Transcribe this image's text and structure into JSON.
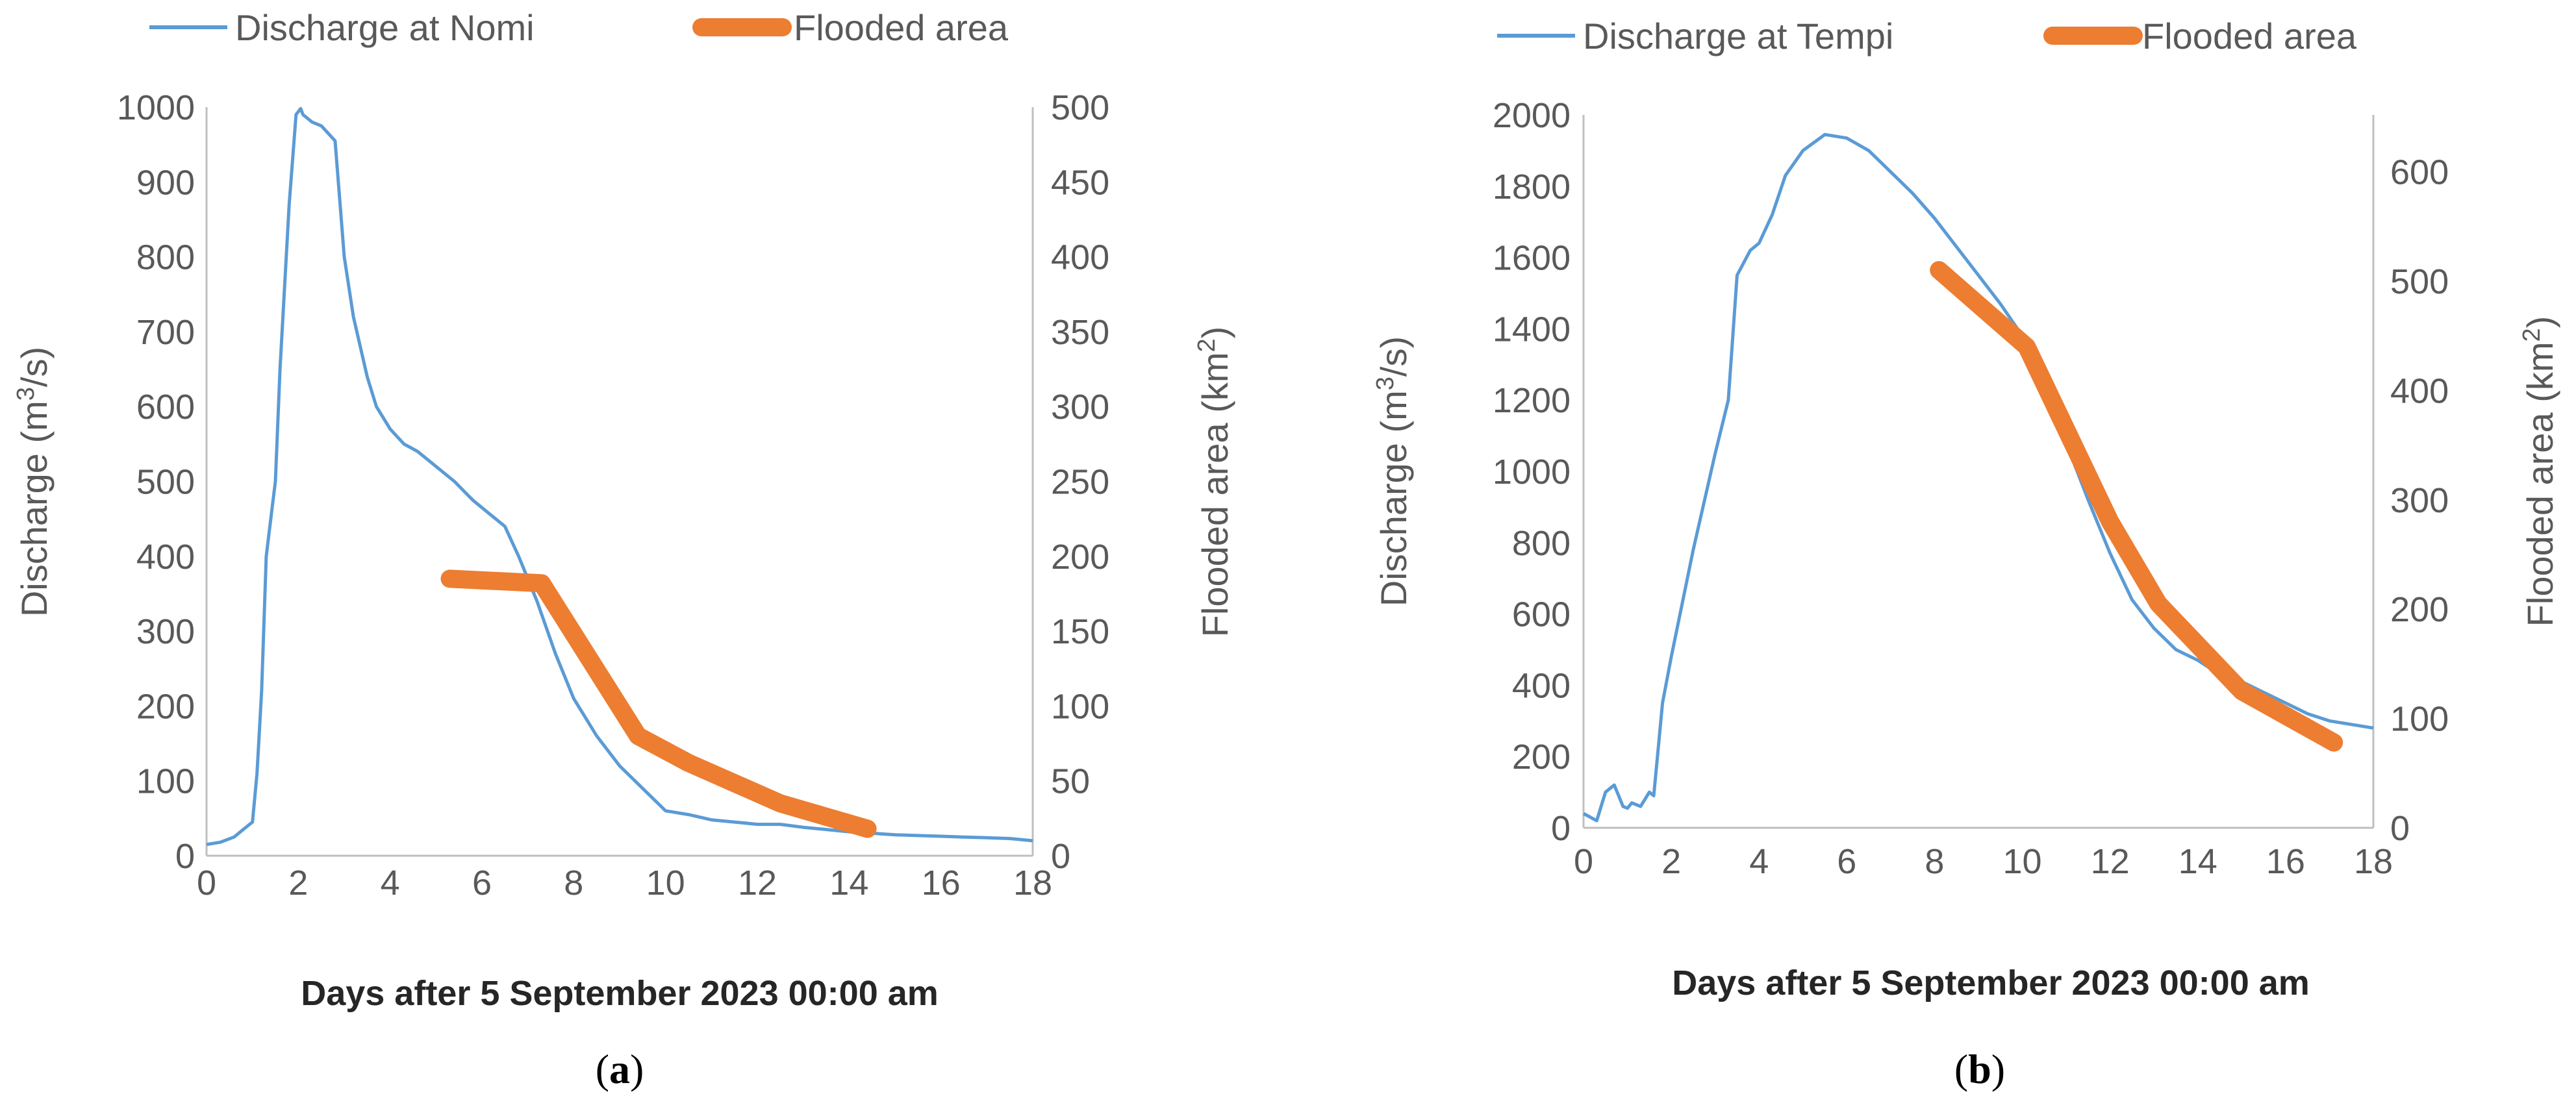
{
  "colors": {
    "discharge": "#5B9BD5",
    "flooded": "#ED7D31",
    "axis": "#BFBFBF",
    "text": "#595959"
  },
  "chart_data": [
    {
      "type": "line",
      "panel_label_open": "(",
      "panel_label_letter": "a",
      "panel_label_close": ")",
      "xlabel": "Days after 5 September 2023 00:00 am",
      "ylabel_left_main": "Discharge (m",
      "ylabel_left_sup": "3",
      "ylabel_left_end": "/s)",
      "ylabel_right_main": "Flooded area (km",
      "ylabel_right_sup": "2",
      "ylabel_right_end": ")",
      "xlim": [
        0,
        18
      ],
      "xticks": [
        "0",
        "2",
        "4",
        "6",
        "8",
        "10",
        "12",
        "14",
        "16",
        "18"
      ],
      "ylim_left": [
        0,
        1000
      ],
      "yticks_left": [
        "0",
        "100",
        "200",
        "300",
        "400",
        "500",
        "600",
        "700",
        "800",
        "900",
        "1000"
      ],
      "ylim_right": [
        0,
        500
      ],
      "yticks_right": [
        "0",
        "50",
        "100",
        "150",
        "200",
        "250",
        "300",
        "350",
        "400",
        "450",
        "500"
      ],
      "legend": [
        "Discharge at Nomi",
        "Flooded area"
      ],
      "series": [
        {
          "name": "Discharge at Nomi",
          "axis": "left",
          "x": [
            0,
            0.3,
            0.6,
            0.8,
            1.0,
            1.1,
            1.2,
            1.3,
            1.4,
            1.5,
            1.6,
            1.8,
            1.95,
            2.05,
            2.1,
            2.2,
            2.3,
            2.5,
            2.8,
            3.0,
            3.2,
            3.5,
            3.7,
            4.0,
            4.3,
            4.6,
            5.0,
            5.4,
            5.8,
            6.2,
            6.5,
            6.8,
            7.2,
            7.6,
            8.0,
            8.5,
            9.0,
            9.5,
            10.0,
            10.5,
            11.0,
            11.5,
            12.0,
            12.5,
            13.0,
            13.5,
            14.0,
            14.5,
            15.0,
            15.5,
            16.0,
            16.5,
            17.0,
            17.5,
            18.0
          ],
          "values": [
            15,
            18,
            25,
            35,
            45,
            110,
            220,
            400,
            450,
            500,
            650,
            870,
            990,
            998,
            990,
            985,
            980,
            975,
            955,
            800,
            720,
            640,
            600,
            570,
            550,
            540,
            520,
            500,
            475,
            455,
            440,
            400,
            340,
            270,
            210,
            160,
            120,
            90,
            60,
            55,
            48,
            45,
            42,
            42,
            38,
            35,
            32,
            30,
            28,
            27,
            26,
            25,
            24,
            23,
            20
          ]
        },
        {
          "name": "Flooded area",
          "axis": "right",
          "x": [
            5.3,
            7.3,
            9.4,
            10.5,
            12.5,
            14.4
          ],
          "values": [
            185,
            182,
            80,
            62,
            35,
            18
          ]
        }
      ]
    },
    {
      "type": "line",
      "panel_label_open": "(",
      "panel_label_letter": "b",
      "panel_label_close": ")",
      "xlabel": "Days after 5 September 2023 00:00 am",
      "ylabel_left_main": "Discharge (m",
      "ylabel_left_sup": "3",
      "ylabel_left_end": "/s)",
      "ylabel_right_main": "Flooded area (km",
      "ylabel_right_sup": "2",
      "ylabel_right_end": ")",
      "xlim": [
        0,
        18
      ],
      "xticks": [
        "0",
        "2",
        "4",
        "6",
        "8",
        "10",
        "12",
        "14",
        "16",
        "18"
      ],
      "ylim_left": [
        0,
        2000
      ],
      "yticks_left": [
        "0",
        "200",
        "400",
        "600",
        "800",
        "1000",
        "1200",
        "1400",
        "1600",
        "1800",
        "2000"
      ],
      "ylim_right": [
        0,
        652
      ],
      "yticks_right_values": [
        0,
        100,
        200,
        300,
        400,
        500,
        600
      ],
      "yticks_right": [
        "0",
        "100",
        "200",
        "300",
        "400",
        "500",
        "600"
      ],
      "legend": [
        "Discharge at Tempi",
        "Flooded area"
      ],
      "series": [
        {
          "name": "Discharge at Tempi",
          "axis": "left",
          "x": [
            0,
            0.3,
            0.5,
            0.7,
            0.9,
            1.0,
            1.1,
            1.3,
            1.5,
            1.6,
            1.8,
            2.0,
            2.5,
            3.0,
            3.3,
            3.5,
            3.8,
            4.0,
            4.3,
            4.6,
            5.0,
            5.5,
            6.0,
            6.5,
            7.0,
            7.5,
            8.0,
            8.5,
            9.0,
            9.5,
            10.0,
            10.5,
            11.0,
            11.5,
            12.0,
            12.5,
            13.0,
            13.5,
            14.0,
            14.5,
            15.0,
            15.5,
            16.0,
            16.5,
            17.0,
            17.5,
            18.0
          ],
          "values": [
            40,
            20,
            100,
            120,
            60,
            55,
            70,
            60,
            100,
            90,
            350,
            480,
            780,
            1050,
            1200,
            1550,
            1620,
            1640,
            1720,
            1830,
            1900,
            1945,
            1935,
            1900,
            1840,
            1780,
            1710,
            1630,
            1550,
            1470,
            1380,
            1240,
            1080,
            920,
            770,
            640,
            560,
            500,
            470,
            430,
            410,
            380,
            350,
            320,
            300,
            290,
            280
          ]
        },
        {
          "name": "Flooded area",
          "axis": "right",
          "x": [
            8.1,
            10.1,
            12.0,
            13.1,
            15.0,
            17.1
          ],
          "values": [
            510,
            440,
            280,
            205,
            125,
            78
          ]
        }
      ]
    }
  ]
}
